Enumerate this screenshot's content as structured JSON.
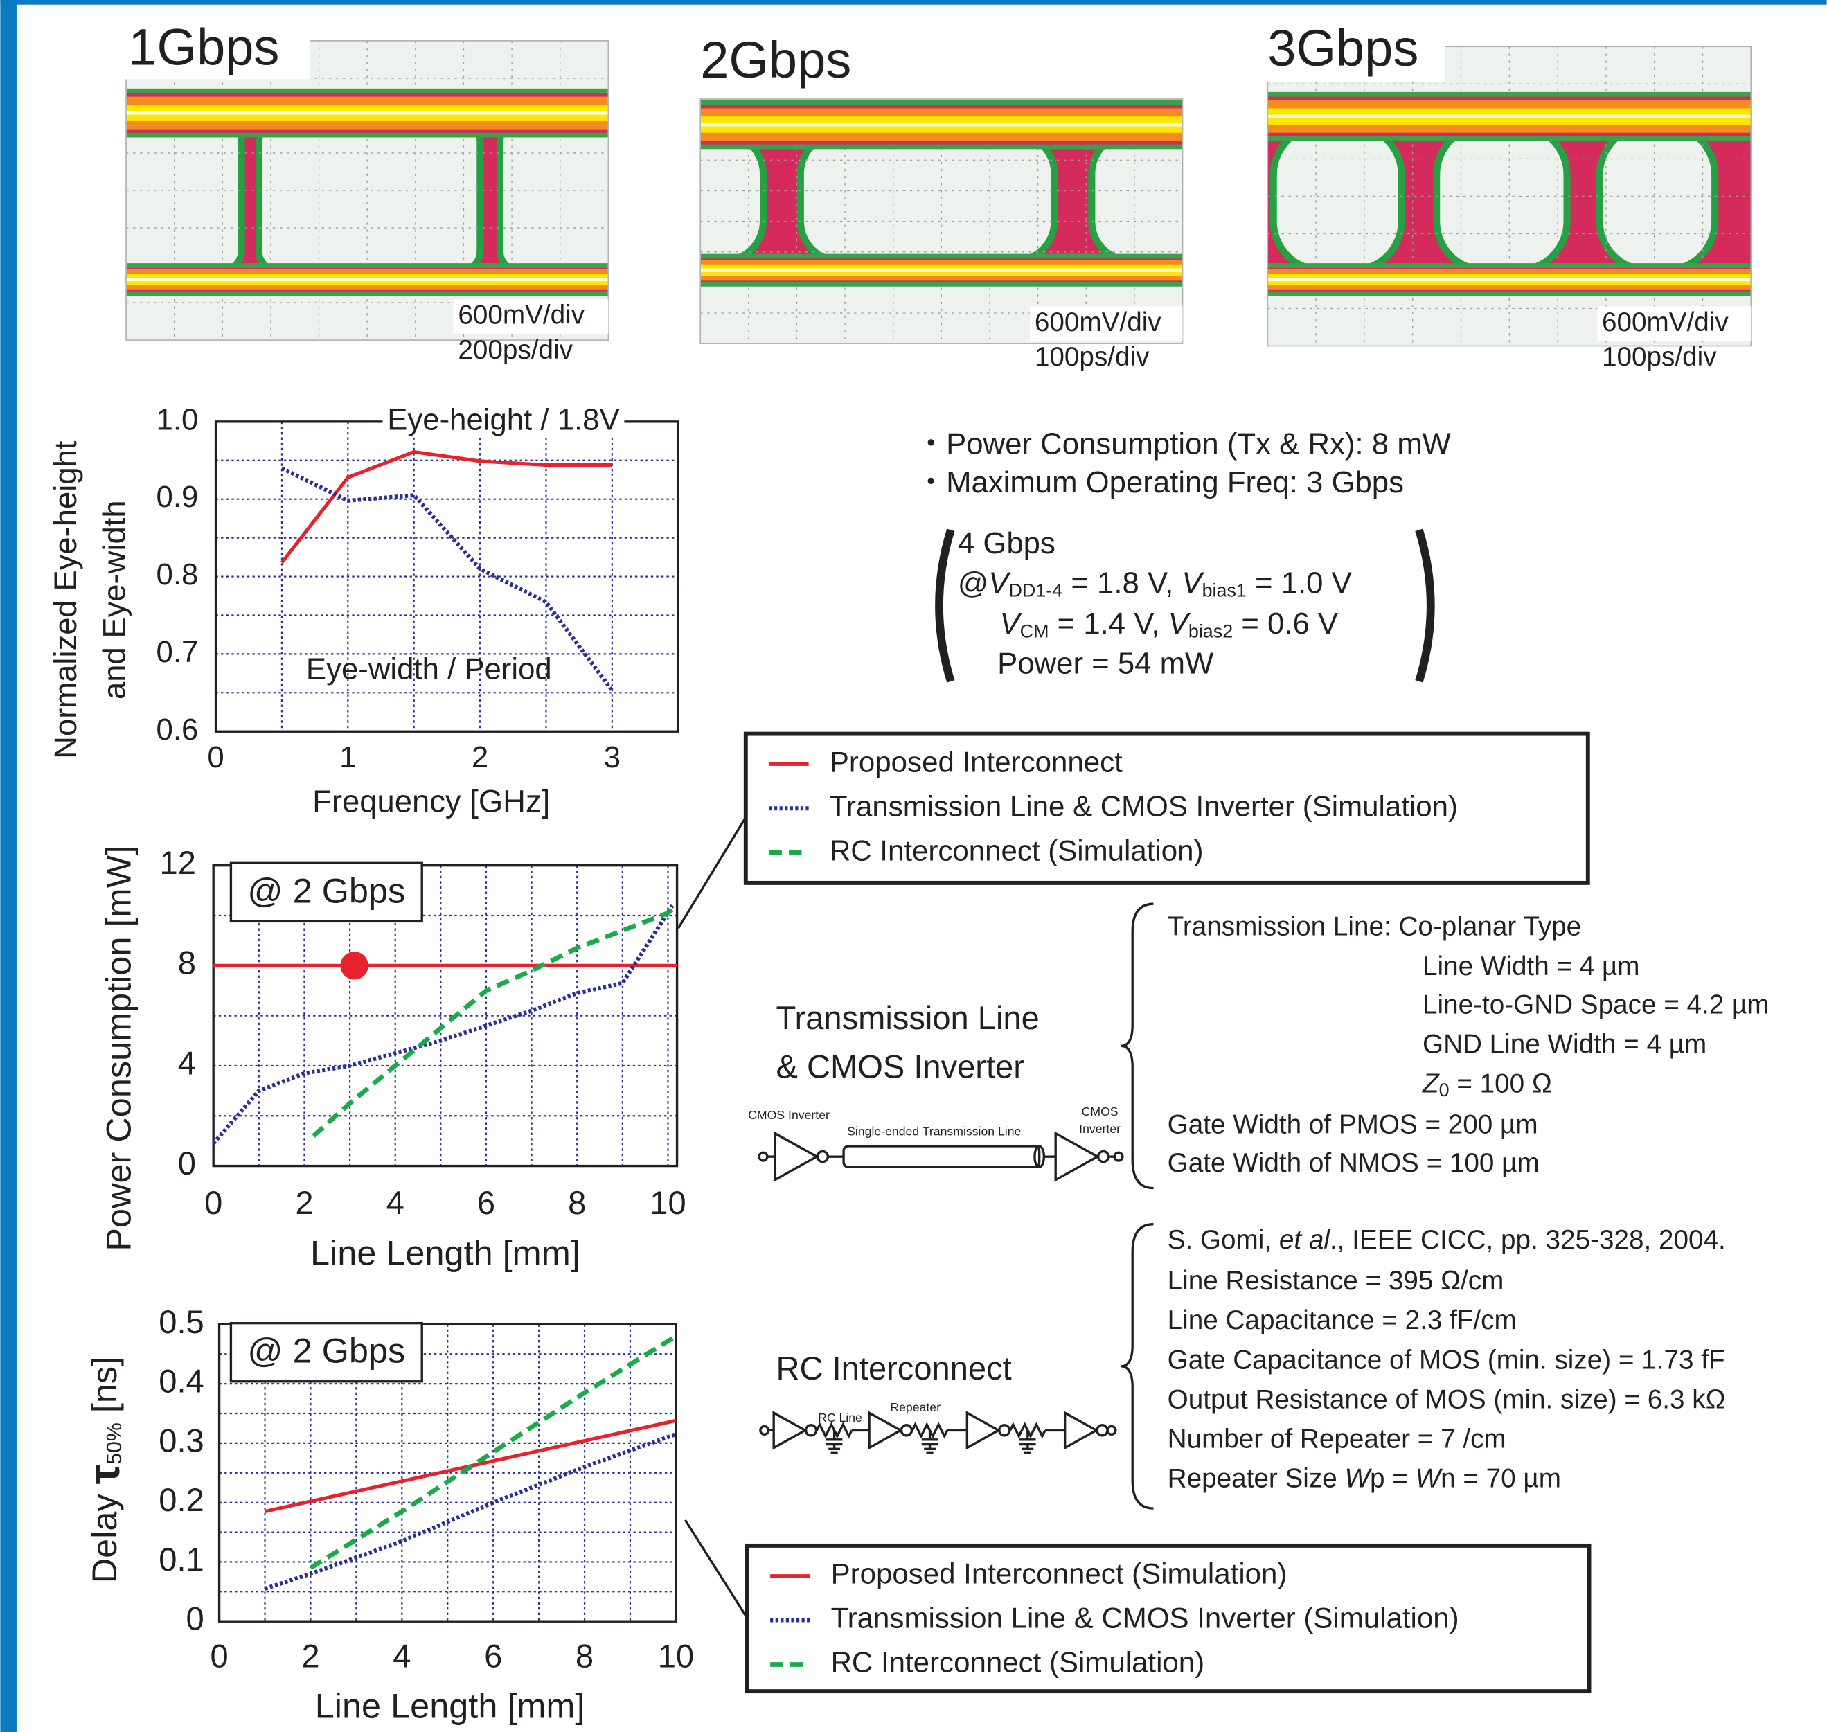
{
  "eye_diagrams": [
    {
      "label": "1Gbps",
      "scale": [
        "600mV/div",
        "200ps/div"
      ]
    },
    {
      "label": "2Gbps",
      "scale": [
        "600mV/div",
        "100ps/div"
      ]
    },
    {
      "label": "3Gbps",
      "scale": [
        "600mV/div",
        "100ps/div"
      ]
    }
  ],
  "chart_data": [
    {
      "type": "line",
      "xlabel": "Frequency [GHz]",
      "ylabel": [
        "Normalized Eye-height",
        "and Eye-width"
      ],
      "xlim": [
        0,
        3.5
      ],
      "xticks": [
        0,
        1,
        2,
        3
      ],
      "ylim": [
        0.6,
        1.0
      ],
      "yticks": [
        0.6,
        0.7,
        0.8,
        0.9,
        {
          "value": 1,
          "label": "1.0"
        }
      ],
      "grid": true,
      "grid_subdivisions": 2,
      "grid_color": "#2b2f8f",
      "series": [
        {
          "name": "Eye-height / 1.8V",
          "color": "#e8222b",
          "line_style": "solid",
          "x": [
            0.5,
            1,
            1.5,
            2,
            2.5,
            3
          ],
          "values": [
            0.818,
            0.928,
            0.961,
            0.949,
            0.944,
            0.944
          ]
        },
        {
          "name": "Eye-width / Period",
          "color": "#2b2f8f",
          "line_style": "dotted",
          "x": [
            0.5,
            1,
            1.5,
            2,
            2.5,
            3
          ],
          "values": [
            0.94,
            0.898,
            0.905,
            0.81,
            0.767,
            0.653
          ]
        }
      ]
    },
    {
      "type": "line",
      "xlabel": "Line Length [mm]",
      "ylabel": "Power Consumption [mW]",
      "xlim": [
        0,
        10.2
      ],
      "xticks": [
        0,
        2,
        4,
        6,
        8,
        10
      ],
      "ylim": [
        0,
        12
      ],
      "yticks": [
        0,
        4,
        8,
        12
      ],
      "grid": true,
      "grid_subdivisions": 2,
      "grid_color": "#2b2f8f",
      "annotation": "@ 2 Gbps",
      "legend": "outside-right",
      "marker": {
        "x": 3.1,
        "y": 8,
        "color": "#e8222b"
      },
      "series": [
        {
          "name": "Proposed Interconnect",
          "color": "#e8222b",
          "line_style": "solid",
          "x": [
            0,
            10.2
          ],
          "values": [
            8,
            8
          ]
        },
        {
          "name": "Transmission Line & CMOS Inverter (Simulation)",
          "color": "#2b2f8f",
          "line_style": "dotted",
          "x": [
            0,
            1,
            2,
            3,
            4,
            5,
            6,
            7,
            8,
            9,
            10.1
          ],
          "values": [
            0.9,
            3.0,
            3.7,
            4.0,
            4.5,
            5.0,
            5.6,
            6.2,
            6.9,
            7.3,
            10.4
          ]
        },
        {
          "name": "RC Interconnect (Simulation)",
          "color": "#1aaa4a",
          "line_style": "dashed",
          "x": [
            2.2,
            3,
            4,
            5,
            6,
            7,
            8,
            9,
            10,
            10.2
          ],
          "values": [
            1.2,
            2.5,
            4.0,
            5.5,
            7.0,
            7.8,
            8.7,
            9.4,
            10.1,
            10.4
          ]
        }
      ]
    },
    {
      "type": "line",
      "xlabel": "Line Length [mm]",
      "ylabel": [
        "Delay ",
        "τ",
        "50%",
        " [ns]"
      ],
      "xlim": [
        0,
        10
      ],
      "xticks": [
        0,
        2,
        4,
        6,
        8,
        10
      ],
      "ylim": [
        0,
        0.5
      ],
      "yticks": [
        0,
        0.1,
        0.2,
        0.3,
        0.4,
        0.5
      ],
      "grid": true,
      "grid_subdivisions": 2,
      "grid_color": "#2b2f8f",
      "annotation": "@ 2 Gbps",
      "legend": "outside-right",
      "series": [
        {
          "name": "Proposed Interconnect (Simulation)",
          "color": "#e8222b",
          "line_style": "solid",
          "x": [
            1,
            10
          ],
          "values": [
            0.185,
            0.338
          ]
        },
        {
          "name": "Transmission Line & CMOS Inverter (Simulation)",
          "color": "#2b2f8f",
          "line_style": "dotted",
          "x": [
            1,
            2,
            4,
            6,
            8,
            10
          ],
          "values": [
            0.055,
            0.08,
            0.135,
            0.2,
            0.26,
            0.315
          ]
        },
        {
          "name": "RC Interconnect (Simulation)",
          "color": "#1aaa4a",
          "line_style": "dashed",
          "x": [
            2,
            4,
            6,
            8,
            10
          ],
          "values": [
            0.09,
            0.185,
            0.285,
            0.385,
            0.48
          ]
        }
      ]
    }
  ],
  "specs": {
    "bullets": [
      "・Power Consumption (Tx & Rx): 8 mW",
      "・Maximum Operating Freq: 3 Gbps"
    ],
    "conditions": [
      [
        "4 Gbps"
      ],
      [
        "@",
        "V",
        "DD1-4",
        " = 1.8 V, ",
        "V",
        "bias1",
        " = 1.0 V"
      ],
      [
        "V",
        "CM",
        " = 1.4 V, ",
        "V",
        "bias2",
        " = 0.6 V"
      ],
      [
        "Power = 54 mW"
      ]
    ]
  },
  "transmission_line": {
    "title": [
      "Transmission Line",
      "& CMOS Inverter"
    ],
    "diagram": {
      "left": "CMOS Inverter",
      "line": "Single-ended Transmission Line",
      "right": [
        "CMOS",
        "Inverter"
      ]
    },
    "params": [
      "Transmission Line: Co-planar Type",
      "Line Width = 4 µm",
      "Line-to-GND Space = 4.2 µm",
      "GND Line Width = 4 µm",
      [
        "Z",
        "0",
        " = 100 Ω"
      ],
      "Gate Width of PMOS = 200 µm",
      "Gate Width of NMOS = 100 µm"
    ]
  },
  "rc_interconnect": {
    "title": "RC Interconnect",
    "diagram": {
      "line": "RC Line",
      "repeater": "Repeater"
    },
    "params": [
      [
        "S. Gomi, ",
        "et al",
        "., IEEE CICC, pp. 325-328, 2004."
      ],
      "Line Resistance = 395 Ω/cm",
      "Line Capacitance = 2.3 fF/cm",
      "Gate Capacitance of MOS (min. size) = 1.73 fF",
      "Output Resistance of MOS (min. size) = 6.3 kΩ",
      "Number of Repeater = 7 /cm",
      [
        "Repeater Size ",
        "W",
        "p = ",
        "W",
        "n = 70 µm"
      ]
    ]
  }
}
